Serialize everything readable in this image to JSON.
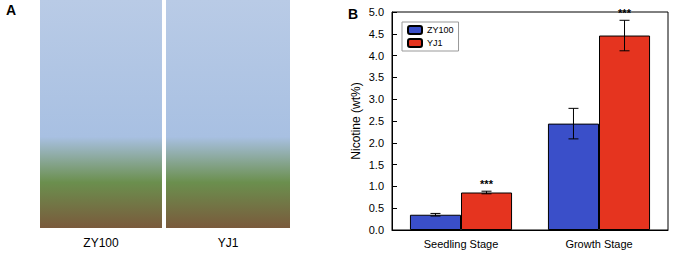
{
  "panel_a": {
    "label": "A",
    "photo_captions": [
      "ZY100",
      "YJ1"
    ]
  },
  "chart_data": {
    "type": "bar",
    "title": "B",
    "y_label": "Nicotine (wt%)",
    "categories": [
      "Seedling Stage",
      "Growth Stage"
    ],
    "series": [
      {
        "name": "ZY100",
        "color": "#3a4fc9",
        "values": [
          0.35,
          2.44
        ],
        "errors": [
          0.03,
          0.35
        ]
      },
      {
        "name": "YJ1",
        "color": "#e5341f",
        "values": [
          0.86,
          4.46
        ],
        "errors": [
          0.03,
          0.35
        ],
        "annotations": [
          "***",
          "***"
        ]
      }
    ],
    "ylim": [
      0,
      5
    ],
    "yticks": [
      {
        "value": 0,
        "label": "0.0"
      },
      {
        "value": 0.5,
        "label": "0.5"
      },
      {
        "value": 1,
        "label": "1.0"
      },
      {
        "value": 1.5,
        "label": "1.5"
      },
      {
        "value": 2,
        "label": "2.0"
      },
      {
        "value": 2.5,
        "label": "2.5"
      },
      {
        "value": 3,
        "label": "3.0"
      },
      {
        "value": 3.5,
        "label": "3.5"
      },
      {
        "value": 4,
        "label": "4.0"
      },
      {
        "value": 4.5,
        "label": "4.5"
      },
      {
        "value": 5,
        "label": "5.0"
      }
    ],
    "legend": "upper left",
    "grid": false
  }
}
